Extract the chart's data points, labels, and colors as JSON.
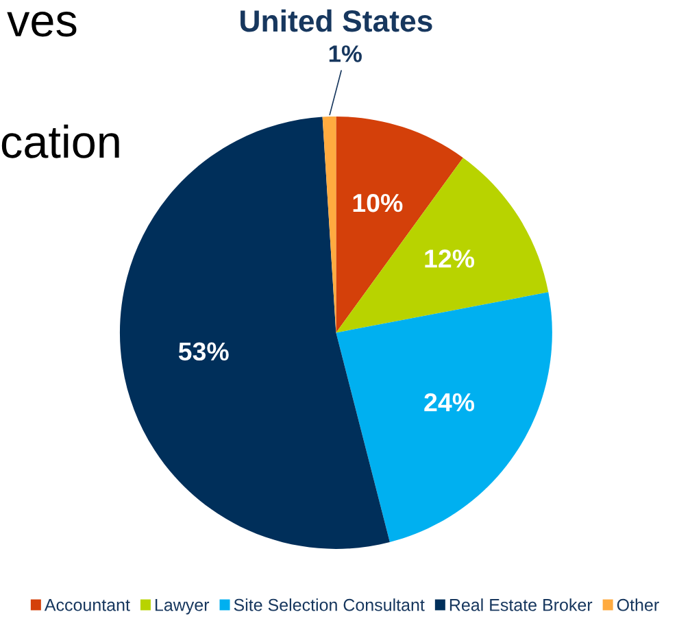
{
  "chart_data": {
    "type": "pie",
    "title": "United States",
    "categories": [
      "Accountant",
      "Lawyer",
      "Site Selection Consultant",
      "Real Estate Broker",
      "Other"
    ],
    "values": [
      10,
      12,
      24,
      53,
      1
    ],
    "colors": [
      "#d4400a",
      "#b8d300",
      "#00b0f0",
      "#002f5a",
      "#ffab40"
    ],
    "value_labels": [
      "10%",
      "12%",
      "24%",
      "53%",
      "1%"
    ],
    "legend": "bottom",
    "annotations": [
      "ves",
      "cation"
    ]
  }
}
